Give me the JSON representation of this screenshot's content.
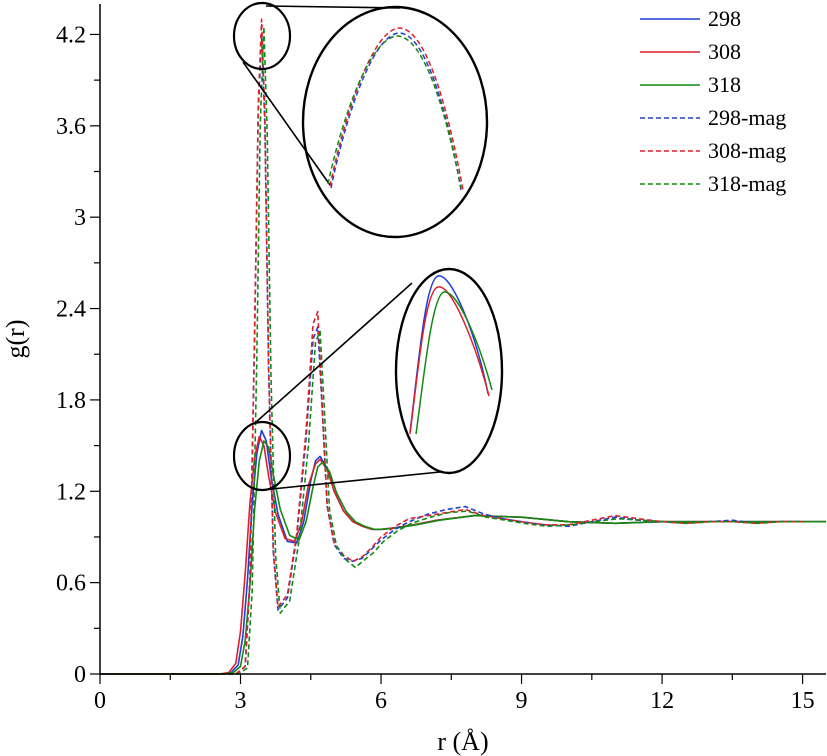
{
  "chart_data": {
    "type": "line",
    "title": "",
    "xlabel": "r (Å)",
    "ylabel": "g(r)",
    "xlim": [
      0,
      15.5
    ],
    "ylim": [
      0,
      4.4
    ],
    "xticks": [
      0,
      3,
      6,
      9,
      12,
      15
    ],
    "xtick_labels": [
      "0",
      "3",
      "6",
      "9",
      "12",
      "15"
    ],
    "yticks": [
      0,
      0.6,
      1.2,
      1.8,
      2.4,
      3,
      3.6,
      4.2
    ],
    "ytick_labels": [
      "0",
      "0.6",
      "1.2",
      "1.8",
      "2.4",
      "3",
      "3.6",
      "4.2"
    ],
    "grid": false,
    "legend_position": "top-right",
    "series": [
      {
        "name": "298",
        "color": "#1f3fd6",
        "style": "solid",
        "x": [
          0,
          2.6,
          2.8,
          2.95,
          3.05,
          3.15,
          3.25,
          3.35,
          3.45,
          3.55,
          3.65,
          3.8,
          4.0,
          4.2,
          4.35,
          4.5,
          4.6,
          4.7,
          4.85,
          5.0,
          5.2,
          5.4,
          5.6,
          5.8,
          6.0,
          6.3,
          6.7,
          7.2,
          8.0,
          9.0,
          10.0,
          11.0,
          12.0,
          13.0,
          14.0,
          15.0,
          15.5
        ],
        "y": [
          0,
          0,
          0.01,
          0.06,
          0.25,
          0.62,
          1.12,
          1.45,
          1.6,
          1.53,
          1.3,
          1.05,
          0.87,
          0.86,
          1.0,
          1.27,
          1.4,
          1.43,
          1.35,
          1.2,
          1.07,
          1.0,
          0.97,
          0.95,
          0.95,
          0.96,
          0.98,
          1.01,
          1.04,
          1.03,
          1.0,
          0.99,
          1.0,
          1.0,
          1.0,
          1.0,
          1.0
        ]
      },
      {
        "name": "308",
        "color": "#e01f2a",
        "style": "solid",
        "x": [
          0,
          2.55,
          2.75,
          2.9,
          3.0,
          3.1,
          3.2,
          3.3,
          3.4,
          3.5,
          3.6,
          3.75,
          3.95,
          4.15,
          4.3,
          4.45,
          4.6,
          4.7,
          4.85,
          5.0,
          5.2,
          5.4,
          5.6,
          5.8,
          6.0,
          6.3,
          6.7,
          7.2,
          8.0,
          9.0,
          10.0,
          11.0,
          12.0,
          13.0,
          14.0,
          15.0,
          15.5
        ],
        "y": [
          0,
          0,
          0.01,
          0.07,
          0.28,
          0.66,
          1.12,
          1.42,
          1.56,
          1.5,
          1.3,
          1.06,
          0.89,
          0.87,
          0.99,
          1.24,
          1.38,
          1.41,
          1.34,
          1.2,
          1.07,
          1.0,
          0.97,
          0.95,
          0.95,
          0.96,
          0.98,
          1.01,
          1.04,
          1.03,
          1.0,
          0.99,
          1.0,
          1.0,
          1.0,
          1.0,
          1.0
        ]
      },
      {
        "name": "318",
        "color": "#128a12",
        "style": "solid",
        "x": [
          0,
          2.65,
          2.85,
          3.0,
          3.1,
          3.2,
          3.3,
          3.4,
          3.5,
          3.6,
          3.7,
          3.85,
          4.05,
          4.25,
          4.4,
          4.55,
          4.65,
          4.75,
          4.9,
          5.05,
          5.25,
          5.45,
          5.65,
          5.85,
          6.05,
          6.35,
          6.75,
          7.25,
          8.0,
          9.0,
          10.0,
          11.0,
          12.0,
          13.0,
          14.0,
          15.0,
          15.5
        ],
        "y": [
          0,
          0,
          0.01,
          0.05,
          0.22,
          0.58,
          1.08,
          1.4,
          1.53,
          1.49,
          1.31,
          1.08,
          0.91,
          0.88,
          1.0,
          1.23,
          1.36,
          1.39,
          1.33,
          1.19,
          1.07,
          1.0,
          0.97,
          0.95,
          0.95,
          0.96,
          0.98,
          1.01,
          1.04,
          1.03,
          1.0,
          0.99,
          1.0,
          1.0,
          1.0,
          1.0,
          1.0
        ]
      },
      {
        "name": "298-mag",
        "color": "#1f3fd6",
        "style": "dashed",
        "x": [
          0,
          2.9,
          3.1,
          3.2,
          3.3,
          3.38,
          3.45,
          3.52,
          3.6,
          3.7,
          3.8,
          4.0,
          4.2,
          4.4,
          4.55,
          4.65,
          4.75,
          4.85,
          5.0,
          5.2,
          5.4,
          5.6,
          5.8,
          6.0,
          6.3,
          6.6,
          7.0,
          7.4,
          7.8,
          8.2,
          8.6,
          9.0,
          9.5,
          10.0,
          10.5,
          11.0,
          11.5,
          12.0,
          12.5,
          13.0,
          13.5,
          14.0,
          14.5,
          15.0
        ],
        "y": [
          0,
          0,
          0.05,
          0.6,
          2.2,
          3.7,
          4.2,
          3.6,
          2.0,
          0.8,
          0.42,
          0.5,
          0.9,
          1.55,
          2.2,
          2.28,
          1.7,
          1.1,
          0.85,
          0.76,
          0.74,
          0.76,
          0.82,
          0.88,
          0.95,
          1.0,
          1.05,
          1.08,
          1.1,
          1.05,
          1.02,
          1.0,
          0.98,
          0.97,
          1.0,
          1.03,
          1.01,
          1.0,
          0.99,
          1.0,
          1.01,
          0.99,
          1.0,
          1.0
        ]
      },
      {
        "name": "308-mag",
        "color": "#e01f2a",
        "style": "dashed",
        "x": [
          0,
          2.9,
          3.1,
          3.2,
          3.3,
          3.38,
          3.45,
          3.52,
          3.6,
          3.7,
          3.8,
          4.0,
          4.2,
          4.4,
          4.55,
          4.65,
          4.75,
          4.85,
          5.0,
          5.2,
          5.4,
          5.6,
          5.8,
          6.0,
          6.3,
          6.6,
          7.0,
          7.4,
          7.8,
          8.2,
          8.6,
          9.0,
          9.5,
          10.0,
          10.5,
          11.0,
          11.5,
          12.0,
          12.5,
          13.0,
          13.5,
          14.0,
          14.5,
          15.0
        ],
        "y": [
          0,
          0,
          0.05,
          0.62,
          2.25,
          3.75,
          4.3,
          3.65,
          2.02,
          0.82,
          0.44,
          0.52,
          0.92,
          1.6,
          2.3,
          2.38,
          1.72,
          1.1,
          0.86,
          0.78,
          0.74,
          0.77,
          0.83,
          0.9,
          0.97,
          1.02,
          1.04,
          1.06,
          1.08,
          1.04,
          1.02,
          1.0,
          0.98,
          0.98,
          1.01,
          1.04,
          1.02,
          1.0,
          0.99,
          1.0,
          1.0,
          0.99,
          1.0,
          1.0
        ]
      },
      {
        "name": "318-mag",
        "color": "#128a12",
        "style": "dashed",
        "x": [
          0,
          2.95,
          3.15,
          3.25,
          3.35,
          3.42,
          3.5,
          3.57,
          3.65,
          3.75,
          3.85,
          4.05,
          4.25,
          4.45,
          4.6,
          4.7,
          4.8,
          4.9,
          5.05,
          5.25,
          5.45,
          5.65,
          5.85,
          6.05,
          6.35,
          6.65,
          7.05,
          7.45,
          7.85,
          8.25,
          8.65,
          9.05,
          9.55,
          10.05,
          10.55,
          11.05,
          11.55,
          12.05,
          12.55,
          13.05,
          13.55,
          14.05,
          14.55,
          15.0
        ],
        "y": [
          0,
          0,
          0.04,
          0.55,
          2.1,
          3.6,
          4.25,
          3.55,
          1.95,
          0.78,
          0.4,
          0.48,
          0.88,
          1.5,
          2.18,
          2.25,
          1.68,
          1.08,
          0.84,
          0.75,
          0.7,
          0.75,
          0.8,
          0.87,
          0.94,
          0.99,
          1.03,
          1.06,
          1.07,
          1.03,
          1.01,
          0.99,
          0.97,
          0.98,
          1.0,
          1.02,
          1.01,
          1.0,
          0.99,
          1.0,
          1.0,
          0.99,
          1.0,
          1.0
        ]
      }
    ]
  }
}
